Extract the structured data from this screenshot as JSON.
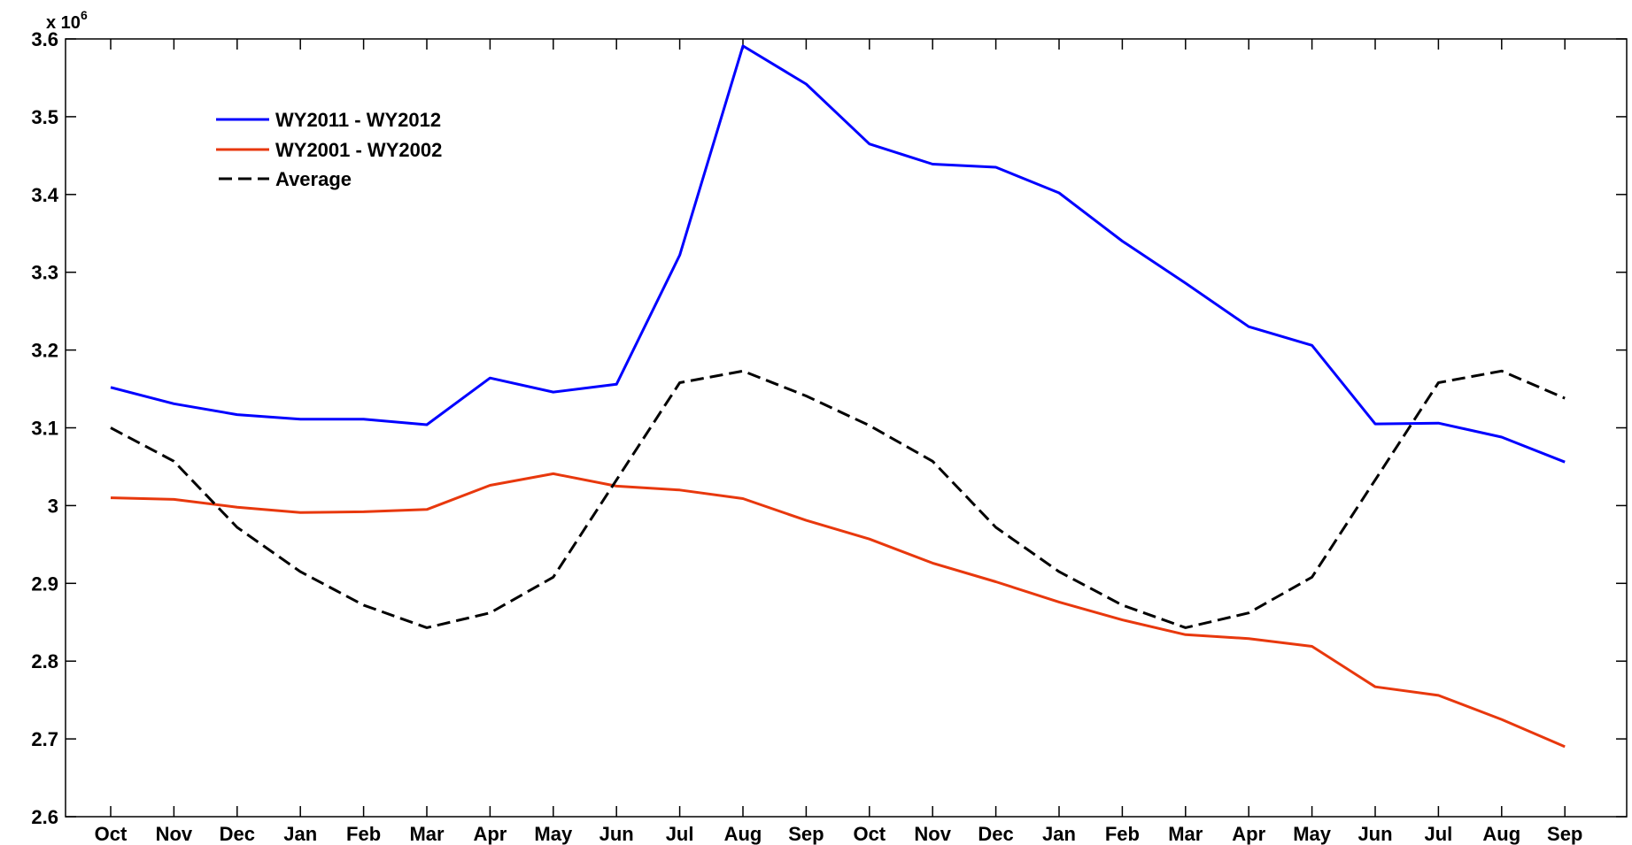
{
  "chart_data": {
    "type": "line",
    "categories": [
      "Oct",
      "Nov",
      "Dec",
      "Jan",
      "Feb",
      "Mar",
      "Apr",
      "May",
      "Jun",
      "Jul",
      "Aug",
      "Sep",
      "Oct",
      "Nov",
      "Dec",
      "Jan",
      "Feb",
      "Mar",
      "Apr",
      "May",
      "Jun",
      "Jul",
      "Aug",
      "Sep"
    ],
    "series": [
      {
        "name": "WY2011 - WY2012",
        "color": "#0000ff",
        "dash": "solid",
        "values": [
          3.152,
          3.131,
          3.117,
          3.111,
          3.111,
          3.104,
          3.164,
          3.146,
          3.156,
          3.322,
          3.591,
          3.542,
          3.465,
          3.439,
          3.435,
          3.402,
          3.34,
          3.286,
          3.23,
          3.206,
          3.105,
          3.106,
          3.088,
          3.056
        ]
      },
      {
        "name": "WY2001 - WY2002",
        "color": "#e8380d",
        "dash": "solid",
        "values": [
          3.01,
          3.008,
          2.998,
          2.991,
          2.992,
          2.995,
          3.026,
          3.041,
          3.025,
          3.02,
          3.009,
          2.981,
          2.957,
          2.926,
          2.902,
          2.876,
          2.853,
          2.834,
          2.829,
          2.819,
          2.767,
          2.756,
          2.725,
          2.69
        ]
      },
      {
        "name": "Average",
        "color": "#000000",
        "dash": "dashed",
        "values": [
          3.1,
          3.057,
          2.972,
          2.915,
          2.872,
          2.843,
          2.862,
          2.908,
          3.033,
          3.158,
          3.173,
          3.141,
          3.103,
          3.057,
          2.972,
          2.915,
          2.872,
          2.843,
          2.862,
          2.908,
          3.033,
          3.158,
          3.173,
          3.138
        ]
      }
    ],
    "yaxis": {
      "min": 2.6,
      "max": 3.6,
      "ticks": [
        2.6,
        2.7,
        2.8,
        2.9,
        3.0,
        3.1,
        3.2,
        3.3,
        3.4,
        3.5,
        3.6
      ],
      "tick_labels": [
        "2.6",
        "2.7",
        "2.8",
        "2.9",
        "3",
        "3.1",
        "3.2",
        "3.3",
        "3.4",
        "3.5",
        "3.6"
      ],
      "multiplier_base": "x 10",
      "multiplier_exp": "6"
    },
    "title": "",
    "xlabel": "",
    "ylabel": "",
    "grid": false,
    "legend_position": "top-left"
  }
}
